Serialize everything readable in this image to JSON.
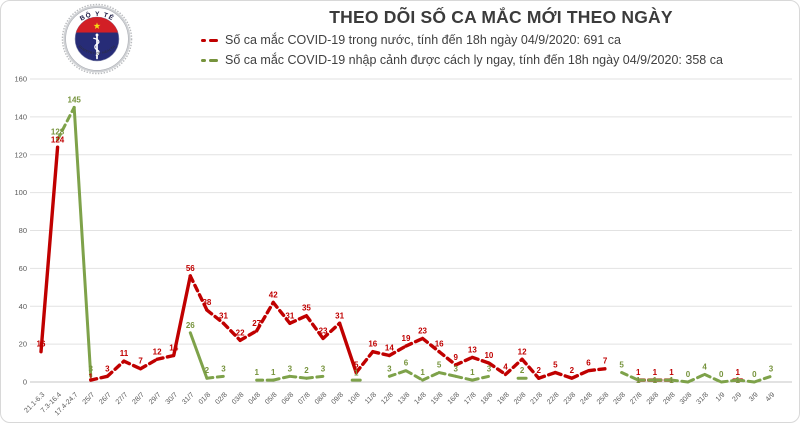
{
  "header": {
    "title": "THEO DÕI SỐ CA MẮC MỚI THEO NGÀY",
    "logo": {
      "top_text": "BỘ Y TẾ",
      "bottom_text": "MINISTRY OF HEALTH"
    },
    "legend": [
      {
        "label": "Số ca mắc COVID-19 trong nước, tính đến 18h ngày 04/9/2020: 691 ca",
        "color": "#C00000"
      },
      {
        "label": "Số ca mắc COVID-19 nhập cảnh được cách ly ngay, tính đến 18h ngày 04/9/2020: 358 ca",
        "color": "#76933C"
      }
    ]
  },
  "colors": {
    "domestic_line": "#C00000",
    "imported_line": "#7EA24A",
    "domestic_label": "#C00000",
    "imported_label": "#76933C",
    "gridline": "#e2e2e2",
    "axis_line": "#c6c6c6",
    "tick_text": "#595959"
  },
  "chart_data": {
    "type": "line",
    "title": "THEO DÕI SỐ CA MẮC MỚI THEO NGÀY",
    "line_style": "dashed",
    "grid": "horizontal",
    "legend_position": "top",
    "ylim": [
      0,
      160
    ],
    "yticks": [
      0,
      20,
      40,
      60,
      80,
      100,
      120,
      140,
      160
    ],
    "categories": [
      "21.1-6.3",
      "7.3-16.4",
      "17.4-24.7",
      "25/7",
      "26/7",
      "27/7",
      "28/7",
      "29/7",
      "30/7",
      "31/7",
      "01/8",
      "02/8",
      "03/8",
      "04/8",
      "05/8",
      "06/8",
      "07/8",
      "08/8",
      "09/8",
      "10/8",
      "11/8",
      "12/8",
      "13/8",
      "14/8",
      "15/8",
      "16/8",
      "17/8",
      "18/8",
      "19/8",
      "20/8",
      "21/8",
      "22/8",
      "23/8",
      "24/8",
      "25/8",
      "26/8",
      "27/8",
      "28/8",
      "29/8",
      "30/8",
      "31/8",
      "1/9",
      "2/9",
      "3/9",
      "4/9"
    ],
    "series": [
      {
        "name": "Số ca mắc COVID-19 trong nước, tính đến 18h ngày 04/9/2020: 691 ca",
        "total": 691,
        "color": "#C00000",
        "label_class": "lred",
        "stroke_width": 3.4,
        "values": [
          16,
          124,
          null,
          1,
          3,
          11,
          7,
          12,
          14,
          56,
          38,
          31,
          22,
          27,
          42,
          31,
          35,
          23,
          31,
          5,
          16,
          14,
          19,
          23,
          16,
          9,
          13,
          10,
          4,
          12,
          2,
          5,
          2,
          6,
          7,
          null,
          1,
          1,
          1,
          null,
          null,
          null,
          1,
          null,
          null
        ]
      },
      {
        "name": "Số ca mắc COVID-19 nhập cảnh được cách ly ngay, tính đến 18h ngày 04/9/2020: 358 ca",
        "total": 358,
        "color": "#7EA24A",
        "label_class": "lgreen",
        "stroke_width": 3,
        "values": [
          null,
          128,
          145,
          3,
          null,
          null,
          null,
          null,
          null,
          26,
          2,
          3,
          null,
          1,
          1,
          3,
          2,
          3,
          null,
          1,
          null,
          3,
          6,
          1,
          5,
          3,
          1,
          3,
          null,
          2,
          null,
          null,
          null,
          null,
          null,
          5,
          1,
          1,
          1,
          0,
          4,
          0,
          1,
          0,
          3
        ]
      }
    ]
  }
}
